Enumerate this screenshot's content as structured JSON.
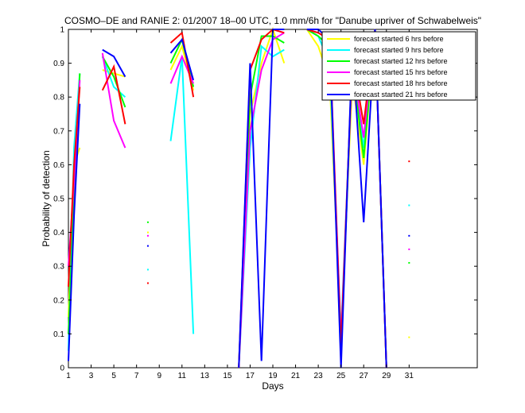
{
  "chart_data": {
    "type": "line",
    "title": "COSMO–DE and RANIE 2: 01/2007 18–00 UTC, 1.0 mm/6h for \"Danube upriver of Schwabelweis\"",
    "xlabel": "Days",
    "ylabel": "Probability of detection",
    "xlim": [
      1,
      37
    ],
    "ylim": [
      0,
      1
    ],
    "xticks": [
      1,
      3,
      5,
      7,
      9,
      11,
      13,
      15,
      17,
      19,
      21,
      23,
      25,
      27,
      29,
      31
    ],
    "yticks": [
      0,
      0.1,
      0.2,
      0.3,
      0.4,
      0.5,
      0.6,
      0.7,
      0.8,
      0.9,
      1
    ],
    "legend_position": "top-right",
    "grid": false,
    "series": [
      {
        "name": "forecast started 6 hrs before",
        "color": "#ffff00",
        "points": [
          [
            1,
            0.15
          ],
          [
            1.5,
            0.6
          ],
          [
            2,
            0.65
          ],
          null,
          [
            4,
            0.88
          ],
          [
            5,
            0.87
          ],
          [
            6,
            0.86
          ],
          null,
          [
            10,
            0.88
          ],
          [
            11,
            0.95
          ],
          [
            12,
            0.82
          ],
          null,
          [
            16,
            0
          ],
          [
            17,
            0.75
          ],
          [
            18,
            0.9
          ],
          [
            19,
            1
          ],
          [
            20,
            0.9
          ],
          null,
          [
            22,
            1
          ],
          [
            23,
            0.95
          ],
          [
            24,
            0.85
          ],
          [
            25,
            0.1
          ],
          [
            26,
            0.85
          ],
          [
            27,
            0.6
          ],
          [
            28,
            1
          ],
          [
            29,
            0
          ]
        ],
        "isolated": [
          [
            8,
            0.4
          ],
          [
            31,
            0.09
          ]
        ]
      },
      {
        "name": "forecast started 9 hrs before",
        "color": "#00ffff",
        "points": [
          [
            1,
            0.05
          ],
          [
            1.5,
            0.65
          ],
          [
            2,
            0.87
          ],
          null,
          [
            4,
            0.92
          ],
          [
            5,
            0.83
          ],
          [
            6,
            0.8
          ],
          null,
          [
            10,
            0.67
          ],
          [
            11,
            0.92
          ],
          [
            12,
            0.1
          ],
          null,
          [
            16,
            0
          ],
          [
            17,
            0.65
          ],
          [
            18,
            0.95
          ],
          [
            19,
            0.92
          ],
          [
            20,
            0.94
          ],
          null,
          [
            22,
            1
          ],
          [
            23,
            0.98
          ],
          [
            24,
            0.9
          ],
          [
            25,
            0.1
          ],
          [
            26,
            0.9
          ],
          [
            27,
            0.65
          ],
          [
            28,
            1
          ],
          [
            29,
            0
          ]
        ],
        "isolated": [
          [
            8,
            0.29
          ],
          [
            31,
            0.48
          ]
        ]
      },
      {
        "name": "forecast started 12 hrs before",
        "color": "#00ff00",
        "points": [
          [
            1,
            0.1
          ],
          [
            1.5,
            0.5
          ],
          [
            2,
            0.87
          ],
          null,
          [
            4,
            0.92
          ],
          [
            5,
            0.86
          ],
          [
            6,
            0.77
          ],
          null,
          [
            10,
            0.9
          ],
          [
            11,
            0.97
          ],
          [
            12,
            0.83
          ],
          null,
          [
            16,
            0
          ],
          [
            17,
            0.8
          ],
          [
            18,
            0.98
          ],
          [
            19,
            0.98
          ],
          [
            20,
            0.96
          ],
          null,
          [
            22,
            1
          ],
          [
            23,
            0.98
          ],
          [
            24,
            0.95
          ],
          [
            25,
            0.05
          ],
          [
            26,
            0.9
          ],
          [
            27,
            0.62
          ],
          [
            28,
            1
          ],
          [
            29,
            0
          ]
        ],
        "isolated": [
          [
            8,
            0.43
          ],
          [
            31,
            0.31
          ]
        ]
      },
      {
        "name": "forecast started 15 hrs before",
        "color": "#ff00ff",
        "points": [
          [
            1,
            0.3
          ],
          [
            1.5,
            0.55
          ],
          [
            2,
            0.85
          ],
          null,
          [
            4,
            0.93
          ],
          [
            5,
            0.73
          ],
          [
            6,
            0.65
          ],
          null,
          [
            10,
            0.84
          ],
          [
            11,
            0.92
          ],
          [
            12,
            0.84
          ],
          null,
          [
            16,
            0
          ],
          [
            17,
            0.7
          ],
          [
            18,
            0.88
          ],
          [
            19,
            0.97
          ],
          [
            20,
            0.99
          ],
          null,
          [
            22,
            1
          ],
          [
            23,
            0.99
          ],
          [
            24,
            0.97
          ],
          [
            25,
            0.08
          ],
          [
            26,
            0.9
          ],
          [
            27,
            0.68
          ],
          [
            28,
            1
          ],
          [
            29,
            0
          ]
        ],
        "isolated": [
          [
            8,
            0.39
          ],
          [
            31,
            0.35
          ]
        ]
      },
      {
        "name": "forecast started 18 hrs before",
        "color": "#ff0000",
        "points": [
          [
            1,
            0.24
          ],
          [
            1.5,
            0.6
          ],
          [
            2,
            0.83
          ],
          null,
          [
            4,
            0.82
          ],
          [
            5,
            0.89
          ],
          [
            6,
            0.72
          ],
          null,
          [
            10,
            0.96
          ],
          [
            11,
            0.99
          ],
          [
            12,
            0.8
          ],
          null,
          [
            16,
            0
          ],
          [
            17,
            0.88
          ],
          [
            18,
            0.97
          ],
          [
            19,
            1
          ],
          [
            20,
            0.99
          ],
          null,
          [
            22,
            1
          ],
          [
            23,
            0.99
          ],
          [
            24,
            0.97
          ],
          [
            25,
            0.06
          ],
          [
            26,
            0.92
          ],
          [
            27,
            0.72
          ],
          [
            28,
            1
          ],
          [
            29,
            0
          ]
        ],
        "isolated": [
          [
            8,
            0.25
          ],
          [
            31,
            0.61
          ]
        ]
      },
      {
        "name": "forecast started 21 hrs before",
        "color": "#0000ff",
        "points": [
          [
            1,
            0.02
          ],
          [
            1.5,
            0.45
          ],
          [
            2,
            0.78
          ],
          null,
          [
            4,
            0.94
          ],
          [
            5,
            0.92
          ],
          [
            6,
            0.86
          ],
          null,
          [
            10,
            0.93
          ],
          [
            11,
            0.97
          ],
          [
            12,
            0.85
          ],
          null,
          [
            16,
            0
          ],
          [
            17,
            0.9
          ],
          [
            18,
            0.02
          ],
          [
            19,
            1
          ],
          [
            20,
            1
          ],
          null,
          [
            22,
            1
          ],
          [
            23,
            1
          ],
          [
            24,
            0.97
          ],
          [
            25,
            0
          ],
          [
            26,
            0.95
          ],
          [
            27,
            0.43
          ],
          [
            28,
            1
          ],
          [
            29,
            0
          ]
        ],
        "isolated": [
          [
            8,
            0.36
          ],
          [
            31,
            0.39
          ]
        ]
      }
    ]
  }
}
